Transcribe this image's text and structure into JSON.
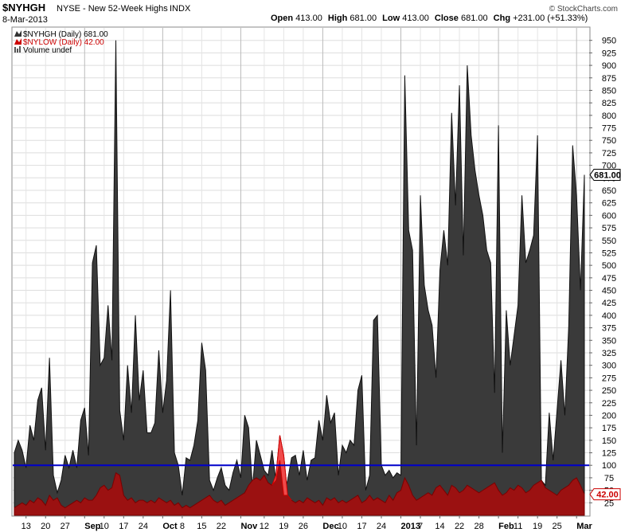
{
  "header": {
    "symbol": "$NYHGH",
    "description": "NYSE - New 52-Week Highs",
    "exchange": "INDX",
    "date": "8-Mar-2013",
    "open_label": "Open",
    "open": "413.00",
    "high_label": "High",
    "high": "681.00",
    "low_label": "Low",
    "low": "413.00",
    "close_label": "Close",
    "close": "681.00",
    "chg_label": "Chg",
    "chg": "+231.00 (+51.33%)",
    "watermark": "© StockCharts.com"
  },
  "legend": {
    "items": [
      {
        "label": "$NYHGH (Daily) 681.00",
        "color": "#333333",
        "icon": "area-chart-icon"
      },
      {
        "label": "$NYLOW (Daily) 42.00",
        "color": "#cc0000",
        "icon": "area-chart-icon"
      },
      {
        "label": "Volume undef",
        "color": "#555555",
        "icon": "bar-chart-icon"
      }
    ]
  },
  "chart_data": {
    "type": "area",
    "title": "$NYHGH NYSE - New 52-Week Highs INDX",
    "ylim": [
      0,
      975
    ],
    "y_ticks": [
      25,
      50,
      75,
      100,
      125,
      150,
      175,
      200,
      225,
      250,
      275,
      300,
      325,
      350,
      375,
      400,
      425,
      450,
      475,
      500,
      525,
      550,
      575,
      600,
      625,
      650,
      675,
      700,
      725,
      750,
      775,
      800,
      825,
      850,
      875,
      900,
      925,
      950
    ],
    "x_tick_labels": [
      "13",
      "20",
      "27",
      "Sep",
      "10",
      "17",
      "24",
      "Oct",
      "8",
      "15",
      "22",
      "Nov",
      "12",
      "19",
      "26",
      "Dec",
      "10",
      "17",
      "24",
      "2013",
      "7",
      "14",
      "22",
      "28",
      "Feb",
      "11",
      "19",
      "25",
      "Mar"
    ],
    "x_tick_bold": [
      "Sep",
      "Oct",
      "Nov",
      "Dec",
      "2013",
      "Feb",
      "Mar"
    ],
    "x_tick_pos": [
      3,
      8,
      13,
      18,
      23,
      28,
      33,
      38,
      43,
      48,
      53,
      58,
      64,
      69,
      74,
      79,
      84,
      89,
      94,
      99,
      104,
      109,
      114,
      119,
      124,
      129,
      134,
      139,
      144
    ],
    "month_gridlines_at": [
      18,
      38,
      58,
      79,
      99,
      124,
      144
    ],
    "horizontal_line": {
      "value": 100,
      "color": "#0000cc"
    },
    "series": [
      {
        "name": "$NYHGH (Daily)",
        "color": "#333333",
        "last_value": "681.00",
        "values": [
          125,
          150,
          130,
          95,
          180,
          150,
          230,
          255,
          130,
          315,
          80,
          45,
          70,
          120,
          95,
          130,
          95,
          190,
          215,
          120,
          505,
          540,
          300,
          315,
          420,
          310,
          950,
          210,
          150,
          300,
          205,
          400,
          230,
          290,
          165,
          165,
          185,
          330,
          205,
          270,
          450,
          125,
          100,
          40,
          115,
          110,
          140,
          190,
          345,
          290,
          70,
          50,
          75,
          95,
          60,
          50,
          85,
          110,
          75,
          200,
          175,
          55,
          150,
          120,
          90,
          80,
          130,
          70,
          110,
          40,
          70,
          115,
          120,
          80,
          130,
          70,
          110,
          115,
          190,
          150,
          240,
          185,
          205,
          80,
          140,
          125,
          150,
          140,
          250,
          280,
          50,
          80,
          390,
          400,
          100,
          80,
          90,
          75,
          85,
          80,
          880,
          570,
          530,
          140,
          640,
          460,
          410,
          380,
          275,
          490,
          570,
          500,
          805,
          620,
          860,
          520,
          900,
          760,
          690,
          640,
          600,
          530,
          505,
          245,
          780,
          125,
          410,
          300,
          360,
          420,
          640,
          505,
          530,
          560,
          760,
          70,
          60,
          205,
          110,
          210,
          310,
          200,
          380,
          740,
          640,
          450,
          681
        ],
        "highlight": {
          "from_index": 66,
          "to_index": 71,
          "color": "#ff5555"
        }
      },
      {
        "name": "$NYLOW (Daily)",
        "color": "#cc0000",
        "last_value": "42.00",
        "values": [
          15,
          20,
          25,
          20,
          30,
          25,
          35,
          30,
          20,
          40,
          30,
          35,
          20,
          15,
          20,
          25,
          30,
          25,
          35,
          30,
          30,
          40,
          55,
          60,
          50,
          55,
          85,
          80,
          40,
          30,
          35,
          25,
          30,
          30,
          25,
          30,
          25,
          35,
          30,
          25,
          30,
          20,
          25,
          15,
          20,
          15,
          20,
          25,
          30,
          35,
          40,
          30,
          25,
          30,
          20,
          25,
          30,
          35,
          40,
          45,
          60,
          70,
          75,
          70,
          80,
          65,
          60,
          80,
          160,
          120,
          40,
          30,
          25,
          30,
          25,
          35,
          30,
          25,
          30,
          20,
          35,
          30,
          35,
          25,
          30,
          25,
          30,
          35,
          40,
          25,
          30,
          40,
          30,
          35,
          30,
          25,
          40,
          30,
          45,
          50,
          75,
          60,
          40,
          30,
          35,
          40,
          45,
          40,
          55,
          60,
          50,
          40,
          60,
          55,
          45,
          50,
          60,
          55,
          50,
          45,
          50,
          55,
          60,
          65,
          50,
          40,
          45,
          55,
          50,
          60,
          55,
          45,
          50,
          60,
          65,
          70,
          55,
          50,
          45,
          40,
          50,
          55,
          60,
          70,
          75,
          60,
          42
        ]
      }
    ]
  }
}
